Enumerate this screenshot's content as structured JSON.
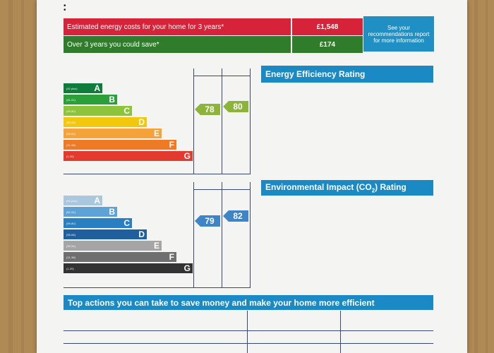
{
  "costs": {
    "estimated_label": "Estimated energy costs for your home for 3 years*",
    "estimated_value": "£1,548",
    "save_label": "Over 3 years you could save*",
    "save_value": "£174",
    "see_text": "See your recommendations report for more information",
    "colors": {
      "estimated": "#d6233a",
      "save": "#2f7d2a",
      "info": "#1f8fc4"
    }
  },
  "energy": {
    "title": "Energy Efficiency Rating",
    "bands": [
      {
        "range": "(92 plus)",
        "letter": "A",
        "color": "#0e7c3a"
      },
      {
        "range": "(81-91)",
        "letter": "B",
        "color": "#2ba03a"
      },
      {
        "range": "(69-80)",
        "letter": "C",
        "color": "#8cc43b"
      },
      {
        "range": "(55-68)",
        "letter": "D",
        "color": "#f2c80d"
      },
      {
        "range": "(39-54)",
        "letter": "E",
        "color": "#f4a23a"
      },
      {
        "range": "(21-38)",
        "letter": "F",
        "color": "#ee7a23"
      },
      {
        "range": "(1-20)",
        "letter": "G",
        "color": "#e23a2f"
      }
    ],
    "current": "78",
    "potential": "80",
    "current_color": "#8cb43b",
    "potential_color": "#8cb43b"
  },
  "environment": {
    "title_prefix": "Environmental Impact (CO",
    "title_sub": "2",
    "title_suffix": ") Rating",
    "bands": [
      {
        "range": "(92 plus)",
        "letter": "A",
        "color": "#a9c8df"
      },
      {
        "range": "(81-91)",
        "letter": "B",
        "color": "#5fa3d6"
      },
      {
        "range": "(69-80)",
        "letter": "C",
        "color": "#2a7fc0"
      },
      {
        "range": "(55-68)",
        "letter": "D",
        "color": "#1f5f9e"
      },
      {
        "range": "(39-54)",
        "letter": "E",
        "color": "#a5a5a5"
      },
      {
        "range": "(21-38)",
        "letter": "F",
        "color": "#6f6f6f"
      },
      {
        "range": "(1-20)",
        "letter": "G",
        "color": "#333333"
      }
    ],
    "current": "79",
    "potential": "82",
    "current_color": "#3f84c4",
    "potential_color": "#3f84c4"
  },
  "actions": {
    "title": "Top actions you can take to save money and make your home more efficient"
  }
}
